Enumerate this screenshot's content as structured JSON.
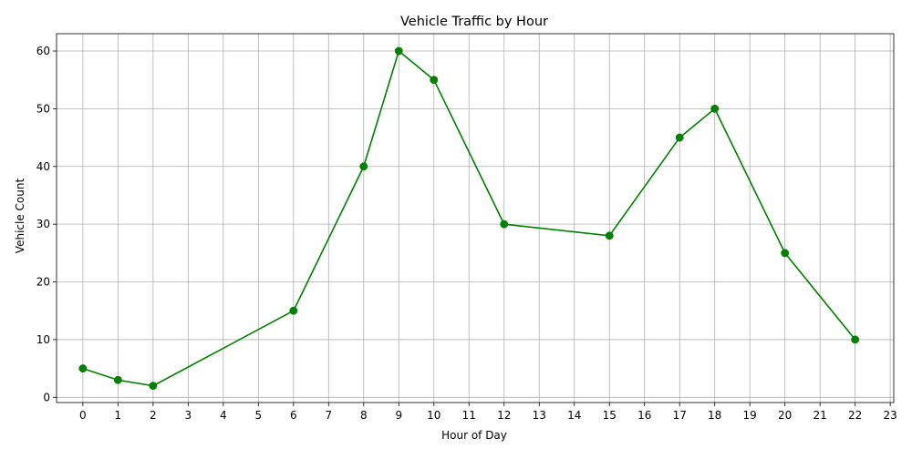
{
  "chart_data": {
    "type": "line",
    "title": "Vehicle Traffic by Hour",
    "xlabel": "Hour of Day",
    "ylabel": "Vehicle Count",
    "x_ticks": [
      0,
      1,
      2,
      3,
      4,
      5,
      6,
      7,
      8,
      9,
      10,
      11,
      12,
      13,
      14,
      15,
      16,
      17,
      18,
      19,
      20,
      21,
      22,
      23
    ],
    "y_ticks": [
      0,
      10,
      20,
      30,
      40,
      50,
      60
    ],
    "xlim": [
      -0.75,
      23.1
    ],
    "ylim": [
      -0.9,
      63
    ],
    "grid": true,
    "series": [
      {
        "color": "#008000",
        "marker": "circle",
        "x": [
          0,
          1,
          2,
          6,
          8,
          9,
          10,
          12,
          15,
          17,
          18,
          20,
          22
        ],
        "y": [
          5,
          3,
          2,
          15,
          40,
          60,
          55,
          30,
          28,
          45,
          50,
          25,
          10
        ]
      }
    ]
  }
}
